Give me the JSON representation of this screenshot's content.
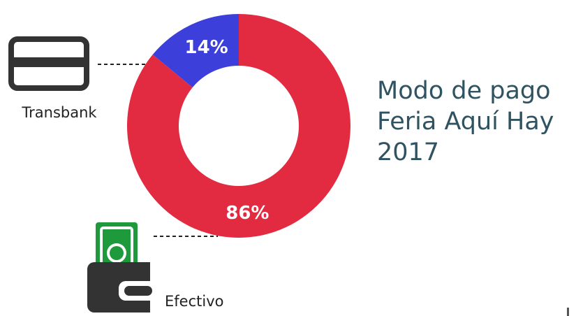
{
  "chart_data": {
    "type": "donut",
    "title": "Modo de pago Feria Aquí Hay 2017",
    "categories": [
      "Transbank",
      "Efectivo"
    ],
    "values": [
      14,
      86
    ],
    "value_labels": [
      "14%",
      "86%"
    ],
    "colors": [
      "#3d3fdb",
      "#e22a41"
    ]
  }
}
